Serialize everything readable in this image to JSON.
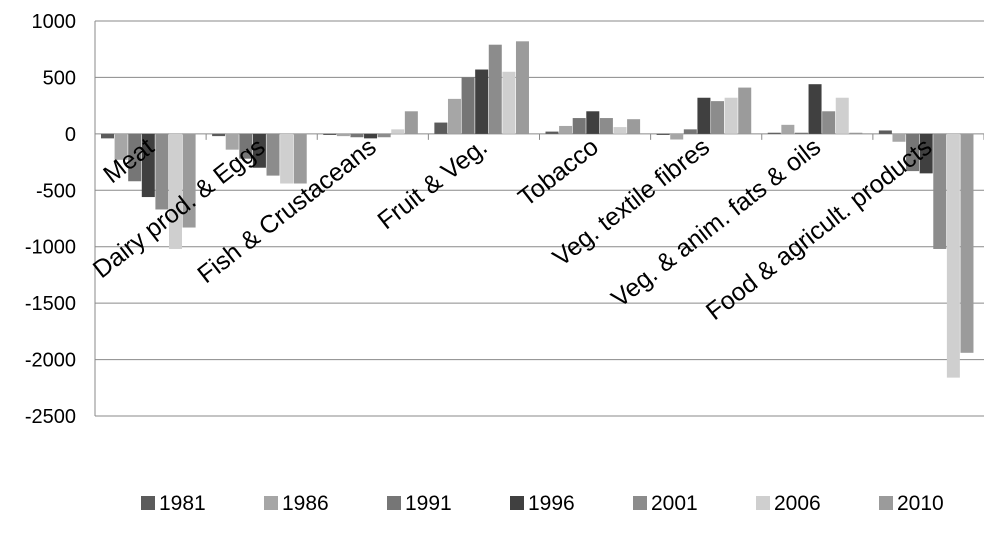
{
  "chart_data": {
    "type": "bar",
    "title": "",
    "xlabel": "",
    "ylabel": "",
    "ylim": [
      -2500,
      1000
    ],
    "yticks": [
      1000,
      500,
      0,
      -500,
      -1000,
      -1500,
      -2000,
      -2500
    ],
    "grid": "horizontal",
    "legend_position": "bottom",
    "categories": [
      "Meat",
      "Dairy prod. & Eggs",
      "Fish & Crustaceans",
      "Fruit & Veg.",
      "Tobacco",
      "Veg. textile fibres",
      "Veg. & anim. fats & oils",
      "Food & agricult. products"
    ],
    "series": [
      {
        "name": "1981",
        "color": "#5b5b5b",
        "values": [
          -40,
          -20,
          -10,
          100,
          20,
          -10,
          10,
          30
        ]
      },
      {
        "name": "1986",
        "color": "#a6a6a6",
        "values": [
          -230,
          -140,
          -20,
          310,
          70,
          -50,
          80,
          -70
        ]
      },
      {
        "name": "1991",
        "color": "#767676",
        "values": [
          -420,
          -220,
          -30,
          500,
          140,
          40,
          10,
          -330
        ]
      },
      {
        "name": "1996",
        "color": "#404040",
        "values": [
          -560,
          -300,
          -40,
          570,
          200,
          320,
          440,
          -350
        ]
      },
      {
        "name": "2001",
        "color": "#8c8c8c",
        "values": [
          -670,
          -370,
          -30,
          790,
          140,
          290,
          200,
          -1020
        ]
      },
      {
        "name": "2006",
        "color": "#cfcfcf",
        "values": [
          -1020,
          -440,
          40,
          550,
          60,
          320,
          320,
          -2160
        ]
      },
      {
        "name": "2010",
        "color": "#9b9b9b",
        "values": [
          -830,
          -440,
          200,
          820,
          130,
          410,
          10,
          -1940
        ]
      }
    ]
  }
}
